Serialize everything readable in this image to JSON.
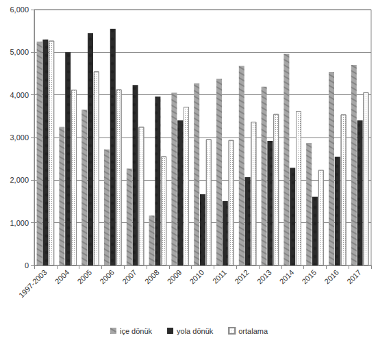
{
  "chart_data": {
    "type": "bar",
    "categories": [
      "1997-2003",
      "2004",
      "2005",
      "2006",
      "2007",
      "2008",
      "2009",
      "2010",
      "2011",
      "2012",
      "2013",
      "2014",
      "2015",
      "2016",
      "2017"
    ],
    "series": [
      {
        "name": "içe dönük",
        "color": "#a6a6a6",
        "values": [
          5250,
          3250,
          3650,
          2720,
          2270,
          1170,
          4050,
          4270,
          4380,
          4680,
          4190,
          4960,
          2870,
          4540,
          4700
        ]
      },
      {
        "name": "yola dönük",
        "color": "#2b2b2b",
        "values": [
          5300,
          5000,
          5450,
          5550,
          4230,
          3960,
          3400,
          1670,
          1510,
          2070,
          2920,
          2290,
          1610,
          2550,
          3400
        ]
      },
      {
        "name": "ortalama",
        "color": "#ffffff",
        "values": [
          5270,
          4120,
          4550,
          4130,
          3250,
          2560,
          3720,
          2960,
          2940,
          3370,
          3550,
          3620,
          2240,
          3540,
          4060
        ]
      }
    ],
    "ylim": [
      0,
      6000
    ],
    "yticks": [
      0,
      1000,
      2000,
      3000,
      4000,
      5000,
      6000
    ],
    "grid": true,
    "legend": "bottom"
  }
}
